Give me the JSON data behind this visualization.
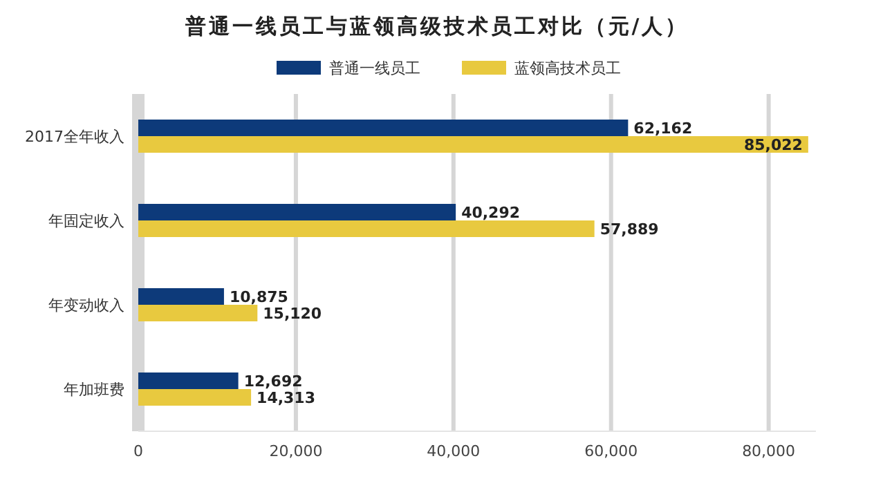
{
  "chart_data": {
    "type": "bar",
    "orientation": "horizontal",
    "title": "普通一线员工与蓝领高级技术员工对比（元/人）",
    "categories": [
      "2017全年收入",
      "年固定收入",
      "年变动收入",
      "年加班费"
    ],
    "series": [
      {
        "name": "普通一线员工",
        "color": "#0d3a7a",
        "values": [
          62162,
          40292,
          10875,
          12692
        ],
        "value_labels": [
          "62,162",
          "40,292",
          "10,875",
          "12,692"
        ]
      },
      {
        "name": "蓝领高技术员工",
        "color": "#e8c93f",
        "values": [
          85022,
          57889,
          15120,
          14313
        ],
        "value_labels": [
          "85,022",
          "57,889",
          "15,120",
          "14,313"
        ]
      }
    ],
    "xlim": [
      0,
      86000
    ],
    "xticks": [
      0,
      {
        "value": 20000,
        "label": "20,000"
      },
      {
        "value": 40000,
        "label": "40,000"
      },
      {
        "value": 60000,
        "label": "60,000"
      },
      {
        "value": 80000,
        "label": "80,000"
      }
    ],
    "grid": "x",
    "legend": "top"
  }
}
